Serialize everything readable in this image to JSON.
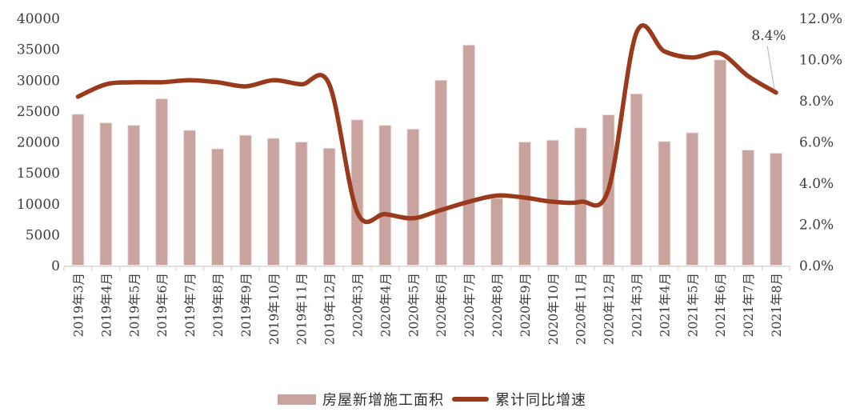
{
  "chart_data": {
    "type": "combo-bar-line",
    "title": "",
    "xlabel": "",
    "ylabel_left": "",
    "ylabel_right": "",
    "grid": false,
    "legend_position": "bottom",
    "categories": [
      "2019年3月",
      "2019年4月",
      "2019年5月",
      "2019年6月",
      "2019年7月",
      "2019年8月",
      "2019年9月",
      "2019年10月",
      "2019年11月",
      "2019年12月",
      "2020年3月",
      "2020年4月",
      "2020年5月",
      "2020年6月",
      "2020年7月",
      "2020年8月",
      "2020年9月",
      "2020年10月",
      "2020年11月",
      "2020年12月",
      "2021年3月",
      "2021年4月",
      "2021年5月",
      "2021年6月",
      "2021年7月",
      "2021年8月"
    ],
    "series": [
      {
        "name": "房屋新增施工面积",
        "type": "bar",
        "axis": "left",
        "color": "#C9A39E",
        "edge_color": "#EFE3E1",
        "values": [
          24500,
          23100,
          22700,
          27000,
          21900,
          18900,
          21100,
          20600,
          20000,
          19000,
          23600,
          22700,
          22100,
          30000,
          35700,
          10900,
          20000,
          20300,
          22300,
          24400,
          27800,
          20100,
          21500,
          33300,
          18700,
          18200
        ]
      },
      {
        "name": "累计同比增速",
        "type": "line",
        "axis": "right",
        "color": "#9A3A1D",
        "values": [
          8.2,
          8.8,
          8.9,
          8.9,
          9.0,
          8.9,
          8.7,
          9.0,
          8.8,
          8.8,
          2.6,
          2.5,
          2.3,
          2.7,
          3.1,
          3.4,
          3.3,
          3.1,
          3.1,
          3.7,
          11.3,
          10.4,
          10.1,
          10.3,
          9.2,
          8.4
        ]
      }
    ],
    "left_axis": {
      "min": 0,
      "max": 40000,
      "step": 5000,
      "tick_labels": [
        "0",
        "5000",
        "10000",
        "15000",
        "20000",
        "25000",
        "30000",
        "35000",
        "40000"
      ]
    },
    "right_axis": {
      "min": 0,
      "max": 12,
      "step": 2,
      "tick_labels": [
        "0.0%",
        "2.0%",
        "4.0%",
        "6.0%",
        "8.0%",
        "10.0%",
        "12.0%"
      ]
    },
    "annotation": {
      "text": "8.4%",
      "target_category": "2021年8月",
      "target_index": 25,
      "leader_color": "#BFBFBF"
    },
    "axis_color": "#D9D9D9",
    "tick_label_color": "#3C3C3C"
  }
}
